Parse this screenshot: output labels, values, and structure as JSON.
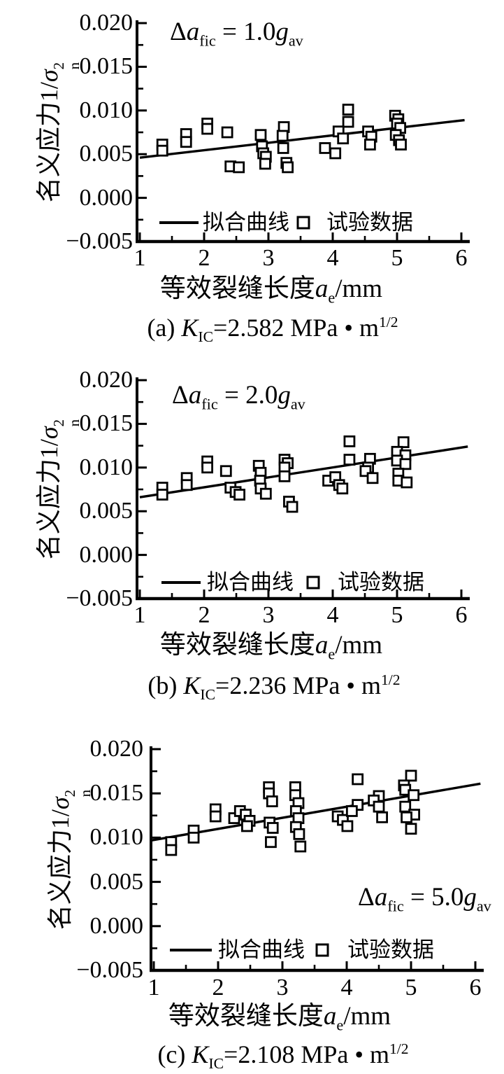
{
  "figure": {
    "legend": {
      "fit_label": "拟合曲线",
      "data_label": "试验数据"
    },
    "x_axis": {
      "title_cn": "等效裂缝长度",
      "title_var": "a",
      "title_var_sub": "e",
      "title_unit": "/mm",
      "tick_labels": [
        "1",
        "2",
        "3",
        "4",
        "5",
        "6"
      ]
    },
    "y_axis": {
      "title_cn": "名义应力",
      "title_pre": "1/",
      "title_var": "σ",
      "title_var_sup": "2",
      "title_var_sub": "n",
      "tick_labels": [
        "0.020",
        "0.015",
        "0.010",
        "0.005",
        "0.000",
        "−0.005"
      ]
    }
  },
  "chart_data": [
    {
      "id": "a",
      "type": "scatter",
      "xlabel": "等效裂缝长度a_e/mm",
      "ylabel": "名义应力1/σ_n^2",
      "annotation_text": "Δa_fic = 1.0g_av",
      "caption_text": "(a) K_IC=2.582 MPa·m^1/2",
      "annotation": {
        "delta": "Δ",
        "var": "a",
        "var_sub": "fic",
        "eq": " = ",
        "value": "1.0",
        "unit_var": "g",
        "unit_sub": "av"
      },
      "caption": {
        "index": "(a) ",
        "symbol": "K",
        "symbol_sub": "IC",
        "eq": "=",
        "value": "2.582",
        "unit": " MPa",
        "dot": " • ",
        "m": "m",
        "m_sup": "1/2"
      },
      "xlim": [
        1,
        6
      ],
      "ylim": [
        -0.005,
        0.02
      ],
      "x_ticks": [
        1,
        2,
        3,
        4,
        5,
        6
      ],
      "y_ticks": [
        0.02,
        0.015,
        0.01,
        0.005,
        0.0,
        -0.005
      ],
      "fit_line": {
        "x1": 1,
        "y1": 0.0046,
        "x2": 6.05,
        "y2": 0.0089
      },
      "points": [
        [
          1.35,
          0.0061
        ],
        [
          1.35,
          0.0054
        ],
        [
          1.72,
          0.0073
        ],
        [
          1.72,
          0.0064
        ],
        [
          2.05,
          0.0085
        ],
        [
          2.05,
          0.0079
        ],
        [
          2.36,
          0.0075
        ],
        [
          2.41,
          0.0036
        ],
        [
          2.54,
          0.0035
        ],
        [
          2.88,
          0.0072
        ],
        [
          2.9,
          0.0059
        ],
        [
          2.92,
          0.0051
        ],
        [
          2.96,
          0.0047
        ],
        [
          2.95,
          0.0039
        ],
        [
          3.24,
          0.0081
        ],
        [
          3.22,
          0.0071
        ],
        [
          3.23,
          0.0057
        ],
        [
          3.28,
          0.004
        ],
        [
          3.3,
          0.0035
        ],
        [
          3.88,
          0.0057
        ],
        [
          4.04,
          0.0051
        ],
        [
          4.24,
          0.0101
        ],
        [
          4.24,
          0.0087
        ],
        [
          4.09,
          0.0076
        ],
        [
          4.16,
          0.0068
        ],
        [
          4.55,
          0.0076
        ],
        [
          4.6,
          0.007
        ],
        [
          4.58,
          0.0061
        ],
        [
          4.97,
          0.0094
        ],
        [
          5.02,
          0.009
        ],
        [
          5.0,
          0.0085
        ],
        [
          5.05,
          0.008
        ],
        [
          4.98,
          0.0072
        ],
        [
          5.03,
          0.0066
        ],
        [
          5.06,
          0.0061
        ]
      ]
    },
    {
      "id": "b",
      "type": "scatter",
      "xlabel": "等效裂缝长度a_e/mm",
      "ylabel": "名义应力1/σ_n^2",
      "annotation_text": "Δa_fic = 2.0g_av",
      "caption_text": "(b) K_IC=2.236 MPa·m^1/2",
      "annotation": {
        "delta": "Δ",
        "var": "a",
        "var_sub": "fic",
        "eq": " = ",
        "value": "2.0",
        "unit_var": "g",
        "unit_sub": "av"
      },
      "caption": {
        "index": "(b) ",
        "symbol": "K",
        "symbol_sub": "IC",
        "eq": "=",
        "value": "2.236",
        "unit": " MPa",
        "dot": " • ",
        "m": "m",
        "m_sup": "1/2"
      },
      "xlim": [
        1,
        6
      ],
      "ylim": [
        -0.005,
        0.02
      ],
      "x_ticks": [
        1,
        2,
        3,
        4,
        5,
        6
      ],
      "y_ticks": [
        0.02,
        0.015,
        0.01,
        0.005,
        0.0,
        -0.005
      ],
      "fit_line": {
        "x1": 1,
        "y1": 0.0066,
        "x2": 6.1,
        "y2": 0.0124
      },
      "points": [
        [
          1.35,
          0.0077
        ],
        [
          1.35,
          0.0069
        ],
        [
          1.73,
          0.0088
        ],
        [
          1.73,
          0.008
        ],
        [
          2.05,
          0.0107
        ],
        [
          2.05,
          0.01
        ],
        [
          2.34,
          0.0096
        ],
        [
          2.41,
          0.0077
        ],
        [
          2.49,
          0.0072
        ],
        [
          2.55,
          0.0069
        ],
        [
          2.85,
          0.0102
        ],
        [
          2.88,
          0.0094
        ],
        [
          2.87,
          0.0085
        ],
        [
          2.88,
          0.0076
        ],
        [
          2.96,
          0.007
        ],
        [
          3.25,
          0.0109
        ],
        [
          3.3,
          0.0105
        ],
        [
          3.25,
          0.01
        ],
        [
          3.25,
          0.009
        ],
        [
          3.32,
          0.0061
        ],
        [
          3.37,
          0.0055
        ],
        [
          3.93,
          0.0085
        ],
        [
          4.04,
          0.0089
        ],
        [
          4.1,
          0.008
        ],
        [
          4.15,
          0.0076
        ],
        [
          4.26,
          0.013
        ],
        [
          4.26,
          0.0109
        ],
        [
          4.58,
          0.011
        ],
        [
          4.55,
          0.01
        ],
        [
          4.51,
          0.0096
        ],
        [
          4.62,
          0.0088
        ],
        [
          5.1,
          0.0129
        ],
        [
          5.0,
          0.0118
        ],
        [
          5.13,
          0.0114
        ],
        [
          5.0,
          0.0108
        ],
        [
          5.13,
          0.0104
        ],
        [
          5.02,
          0.0093
        ],
        [
          5.02,
          0.0085
        ],
        [
          5.15,
          0.0083
        ]
      ]
    },
    {
      "id": "c",
      "type": "scatter",
      "xlabel": "等效裂缝长度a_e/mm",
      "ylabel": "名义应力1/σ_n^2",
      "annotation_text": "Δa_fic = 5.0g_av",
      "caption_text": "(c) K_IC=2.108 MPa·m^1/2",
      "annotation": {
        "delta": "Δ",
        "var": "a",
        "var_sub": "fic",
        "eq": " = ",
        "value": "5.0",
        "unit_var": "g",
        "unit_sub": "av"
      },
      "caption": {
        "index": "(c) ",
        "symbol": "K",
        "symbol_sub": "IC",
        "eq": "=",
        "value": "2.108",
        "unit": " MPa",
        "dot": " • ",
        "m": "m",
        "m_sup": "1/2"
      },
      "xlim": [
        1,
        6
      ],
      "ylim": [
        -0.005,
        0.02
      ],
      "x_ticks": [
        1,
        2,
        3,
        4,
        5,
        6
      ],
      "y_ticks": [
        0.02,
        0.015,
        0.01,
        0.005,
        0.0,
        -0.005
      ],
      "fit_line": {
        "x1": 0.97,
        "y1": 0.0097,
        "x2": 6.08,
        "y2": 0.0161
      },
      "points": [
        [
          1.27,
          0.0095
        ],
        [
          1.27,
          0.0086
        ],
        [
          1.62,
          0.0108
        ],
        [
          1.62,
          0.01
        ],
        [
          1.96,
          0.0132
        ],
        [
          1.96,
          0.0124
        ],
        [
          2.25,
          0.0122
        ],
        [
          2.34,
          0.013
        ],
        [
          2.43,
          0.0126
        ],
        [
          2.49,
          0.0119
        ],
        [
          2.45,
          0.0113
        ],
        [
          2.79,
          0.0157
        ],
        [
          2.79,
          0.015
        ],
        [
          2.84,
          0.0141
        ],
        [
          2.8,
          0.0117
        ],
        [
          2.85,
          0.0111
        ],
        [
          2.82,
          0.0095
        ],
        [
          3.2,
          0.0157
        ],
        [
          3.2,
          0.0148
        ],
        [
          3.25,
          0.0139
        ],
        [
          3.21,
          0.013
        ],
        [
          3.25,
          0.0122
        ],
        [
          3.21,
          0.0112
        ],
        [
          3.26,
          0.0104
        ],
        [
          3.28,
          0.009
        ],
        [
          3.86,
          0.0124
        ],
        [
          3.94,
          0.012
        ],
        [
          4.01,
          0.0113
        ],
        [
          4.17,
          0.0166
        ],
        [
          4.17,
          0.0137
        ],
        [
          4.08,
          0.013
        ],
        [
          4.5,
          0.0147
        ],
        [
          4.42,
          0.0142
        ],
        [
          4.5,
          0.0135
        ],
        [
          4.55,
          0.0123
        ],
        [
          5.0,
          0.017
        ],
        [
          4.89,
          0.0159
        ],
        [
          4.91,
          0.0154
        ],
        [
          5.04,
          0.0148
        ],
        [
          4.91,
          0.0135
        ],
        [
          5.05,
          0.0126
        ],
        [
          4.93,
          0.0123
        ],
        [
          5.0,
          0.011
        ]
      ]
    }
  ]
}
